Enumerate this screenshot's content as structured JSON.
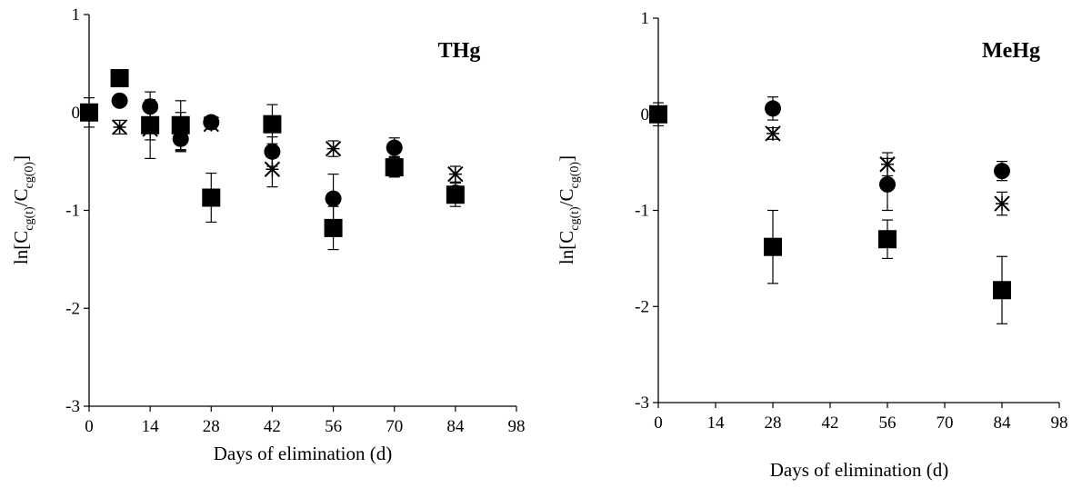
{
  "chart_data": [
    {
      "type": "scatter",
      "title": "THg",
      "xlabel": "Days of elimination (d)",
      "ylabel": "ln[C_cg(t)/C_cg(0)]",
      "ylabel_parts": {
        "pre": "ln[C",
        "sub1": "cg(t)",
        "mid": "/C",
        "sub2": "cg(0)",
        "post": "]"
      },
      "xlim": [
        0,
        98
      ],
      "ylim": [
        -3,
        1
      ],
      "xticks": [
        0,
        14,
        28,
        42,
        56,
        70,
        84,
        98
      ],
      "yticks": [
        1,
        0,
        -1,
        -2,
        -3
      ],
      "series": [
        {
          "marker": "square",
          "points": [
            {
              "x": 0,
              "y": 0,
              "err": 0.15
            },
            {
              "x": 7,
              "y": 0.35,
              "err": 0
            },
            {
              "x": 14,
              "y": -0.13,
              "err": 0.15
            },
            {
              "x": 21,
              "y": -0.13,
              "err": 0.25
            },
            {
              "x": 28,
              "y": -0.87,
              "err": 0.25
            },
            {
              "x": 42,
              "y": -0.12,
              "err": 0.2
            },
            {
              "x": 56,
              "y": -1.18,
              "err": 0.22
            },
            {
              "x": 70,
              "y": -0.56,
              "err": 0.1
            },
            {
              "x": 84,
              "y": -0.84,
              "err": 0.12
            }
          ]
        },
        {
          "marker": "circle",
          "points": [
            {
              "x": 0,
              "y": 0,
              "err": 0
            },
            {
              "x": 7,
              "y": 0.12,
              "err": 0
            },
            {
              "x": 14,
              "y": 0.06,
              "err": 0.15
            },
            {
              "x": 21,
              "y": -0.27,
              "err": 0.12
            },
            {
              "x": 28,
              "y": -0.1,
              "err": 0.05
            },
            {
              "x": 42,
              "y": -0.4,
              "err": 0.15
            },
            {
              "x": 56,
              "y": -0.88,
              "err": 0.25
            },
            {
              "x": 70,
              "y": -0.36,
              "err": 0.1
            },
            {
              "x": 84,
              "y": -0.82,
              "err": 0.1
            }
          ]
        },
        {
          "marker": "asterisk",
          "points": [
            {
              "x": 0,
              "y": 0,
              "err": 0
            },
            {
              "x": 7,
              "y": -0.15,
              "err": 0.07
            },
            {
              "x": 14,
              "y": -0.17,
              "err": 0.3
            },
            {
              "x": 21,
              "y": -0.2,
              "err": 0.2
            },
            {
              "x": 28,
              "y": -0.12,
              "err": 0.05
            },
            {
              "x": 42,
              "y": -0.58,
              "err": 0.18
            },
            {
              "x": 56,
              "y": -0.37,
              "err": 0.08
            },
            {
              "x": 70,
              "y": -0.55,
              "err": 0.1
            },
            {
              "x": 84,
              "y": -0.63,
              "err": 0.08
            }
          ]
        }
      ]
    },
    {
      "type": "scatter",
      "title": "MeHg",
      "xlabel": "Days of elimination (d)",
      "ylabel": "ln[C_cg(t)/C_cg(0)]",
      "ylabel_parts": {
        "pre": "ln[C",
        "sub1": "cg(t)",
        "mid": "/C",
        "sub2": "cg(0)",
        "post": "]"
      },
      "xlim": [
        0,
        98
      ],
      "ylim": [
        -3,
        1
      ],
      "xticks": [
        0,
        14,
        28,
        42,
        56,
        70,
        84,
        98
      ],
      "yticks": [
        1,
        0,
        -1,
        -2,
        -3
      ],
      "series": [
        {
          "marker": "square",
          "points": [
            {
              "x": 0,
              "y": 0,
              "err": 0
            },
            {
              "x": 28,
              "y": -1.38,
              "err": 0.38
            },
            {
              "x": 56,
              "y": -1.3,
              "err": 0.2
            },
            {
              "x": 84,
              "y": -1.83,
              "err": 0.35
            }
          ]
        },
        {
          "marker": "circle",
          "points": [
            {
              "x": 0,
              "y": 0,
              "err": 0.12
            },
            {
              "x": 28,
              "y": 0.06,
              "err": 0.12
            },
            {
              "x": 56,
              "y": -0.73,
              "err": 0.27
            },
            {
              "x": 84,
              "y": -0.59,
              "err": 0.1
            }
          ]
        },
        {
          "marker": "asterisk",
          "points": [
            {
              "x": 0,
              "y": 0,
              "err": 0
            },
            {
              "x": 28,
              "y": -0.2,
              "err": 0.06
            },
            {
              "x": 56,
              "y": -0.52,
              "err": 0.12
            },
            {
              "x": 84,
              "y": -0.93,
              "err": 0.12
            }
          ]
        }
      ]
    }
  ]
}
